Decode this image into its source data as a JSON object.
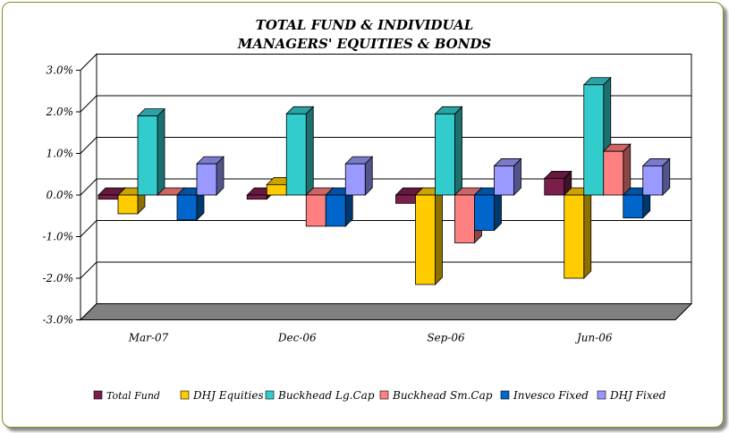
{
  "chart_data": {
    "type": "bar",
    "title_line1": "TOTAL FUND  & INDIVIDUAL",
    "title_line2": "MANAGERS' EQUITIES & BONDS",
    "categories": [
      "Mar-07",
      "Dec-06",
      "Sep-06",
      "Jun-06"
    ],
    "series": [
      {
        "name": "Total Fund",
        "color": "#7a1f4c",
        "values": [
          -0.1,
          -0.1,
          -0.2,
          0.4
        ]
      },
      {
        "name": "DHJ Equities",
        "color": "#ffcc00",
        "values": [
          -0.45,
          0.25,
          -2.15,
          -2.0
        ]
      },
      {
        "name": "Buckhead Lg.Cap",
        "color": "#33cccc",
        "values": [
          1.9,
          1.95,
          1.95,
          2.65
        ]
      },
      {
        "name": "Buckhead Sm.Cap",
        "color": "#ff8080",
        "values": [
          0.0,
          -0.75,
          -1.15,
          1.05
        ]
      },
      {
        "name": "Invesco Fixed",
        "color": "#0066cc",
        "values": [
          -0.6,
          -0.75,
          -0.85,
          -0.55
        ]
      },
      {
        "name": "DHJ Fixed",
        "color": "#9999ff",
        "values": [
          0.75,
          0.75,
          0.7,
          0.7
        ]
      }
    ],
    "yticks": [
      "3.0%",
      "2.0%",
      "1.0%",
      "0.0%",
      "-1.0%",
      "-2.0%",
      "-3.0%"
    ],
    "ylim": [
      -3.0,
      3.0
    ],
    "grid": true,
    "legend_position": "bottom"
  }
}
